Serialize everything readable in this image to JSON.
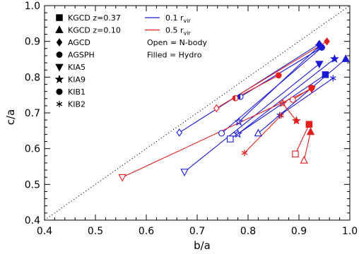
{
  "chart_data": {
    "type": "scatter",
    "xlabel": "b/a",
    "ylabel": "c/a",
    "xlim": [
      0.4,
      1.0
    ],
    "ylim": [
      0.4,
      1.0
    ],
    "x_ticks": [
      "0.4",
      "0.5",
      "0.6",
      "0.7",
      "0.8",
      "0.9",
      "1.0"
    ],
    "y_ticks": [
      "0.4",
      "0.5",
      "0.6",
      "0.7",
      "0.8",
      "0.9",
      "1.0"
    ],
    "grid": false,
    "reference_line": {
      "style": "dotted",
      "x": [
        0.4,
        1.0
      ],
      "y": [
        0.4,
        1.0
      ]
    },
    "colors": {
      "r_0.1": "#1a1ad6",
      "r_0.5": "#e61e1e"
    },
    "marker_legend": [
      {
        "label": "KGCD z=0.37",
        "marker": "square"
      },
      {
        "label": "KGCD z=0.10",
        "marker": "triangle-up"
      },
      {
        "label": "AGCD",
        "marker": "diamond"
      },
      {
        "label": "AGSPH",
        "marker": "half-circle"
      },
      {
        "label": "KIA5",
        "marker": "triangle-down"
      },
      {
        "label": "KIA9",
        "marker": "star5"
      },
      {
        "label": "KIB1",
        "marker": "circle"
      },
      {
        "label": "KIB2",
        "marker": "star6"
      }
    ],
    "line_legend": [
      {
        "label": "0.1 r",
        "subscript": "vir",
        "color": "#1a1ad6"
      },
      {
        "label": "0.5 r",
        "subscript": "vir",
        "color": "#e61e1e"
      }
    ],
    "notes": [
      "Open = N-body",
      "Filled = Hydro"
    ],
    "series": [
      {
        "name": "0.1 r_vir",
        "model": "KGCD z=0.37",
        "marker": "square",
        "open": [
          0.765,
          0.627
        ],
        "filled": [
          0.952,
          0.807
        ]
      },
      {
        "name": "0.1 r_vir",
        "model": "KGCD z=0.10",
        "marker": "triangle-up",
        "open": [
          0.82,
          0.643
        ],
        "filled": [
          0.992,
          0.851
        ]
      },
      {
        "name": "0.1 r_vir",
        "model": "AGCD",
        "marker": "diamond",
        "open": [
          0.665,
          0.645
        ],
        "filled": [
          0.94,
          0.893
        ]
      },
      {
        "name": "0.1 r_vir",
        "model": "AGSPH",
        "marker": "half-circle",
        "open": [
          0.785,
          0.745
        ],
        "filled": [
          0.945,
          0.883
        ]
      },
      {
        "name": "0.1 r_vir",
        "model": "KIA5",
        "marker": "triangle-down",
        "open": [
          0.675,
          0.535
        ],
        "filled": [
          0.94,
          0.837
        ]
      },
      {
        "name": "0.1 r_vir",
        "model": "KIA9",
        "marker": "star5",
        "open": [
          0.78,
          0.641
        ],
        "filled": [
          0.97,
          0.851
        ]
      },
      {
        "name": "0.1 r_vir",
        "model": "KIB1",
        "marker": "circle",
        "open": [
          0.748,
          0.643
        ],
        "filled": [
          0.945,
          0.883
        ]
      },
      {
        "name": "0.1 r_vir",
        "model": "KIB2",
        "marker": "star6",
        "open": [
          0.862,
          0.693
        ],
        "filled": [
          0.967,
          0.797
        ]
      },
      {
        "name": "0.1 r_vir",
        "model": "KIB1",
        "marker": "star5",
        "open": [
          0.782,
          0.675
        ],
        "filled": [
          0.94,
          0.887
        ]
      },
      {
        "name": "0.5 r_vir",
        "model": "KGCD z=0.37",
        "marker": "square",
        "open": [
          0.893,
          0.585
        ],
        "filled": [
          0.92,
          0.668
        ]
      },
      {
        "name": "0.5 r_vir",
        "model": "KGCD z=0.10",
        "marker": "triangle-up",
        "open": [
          0.91,
          0.567
        ],
        "filled": [
          0.923,
          0.647
        ]
      },
      {
        "name": "0.5 r_vir",
        "model": "AGCD",
        "marker": "diamond",
        "open": [
          0.738,
          0.713
        ],
        "filled": [
          0.955,
          0.9
        ]
      },
      {
        "name": "0.5 r_vir",
        "model": "AGSPH",
        "marker": "half-circle",
        "open": [
          0.775,
          0.741
        ],
        "filled": [
          0.86,
          0.805
        ]
      },
      {
        "name": "0.5 r_vir",
        "model": "KIA5",
        "marker": "triangle-down",
        "open": [
          0.553,
          0.52
        ],
        "filled": [
          0.925,
          0.767
        ]
      },
      {
        "name": "0.5 r_vir",
        "model": "KIA9",
        "marker": "star5",
        "open": [
          0.868,
          0.727
        ],
        "filled": [
          0.895,
          0.678
        ]
      },
      {
        "name": "0.5 r_vir",
        "model": "KIB1",
        "marker": "circle",
        "open": [
          0.888,
          0.737
        ],
        "filled": [
          0.925,
          0.77
        ]
      },
      {
        "name": "0.5 r_vir",
        "model": "KIB2",
        "marker": "star6",
        "open": [
          0.793,
          0.588
        ],
        "filled": [
          0.865,
          0.693
        ]
      }
    ]
  }
}
